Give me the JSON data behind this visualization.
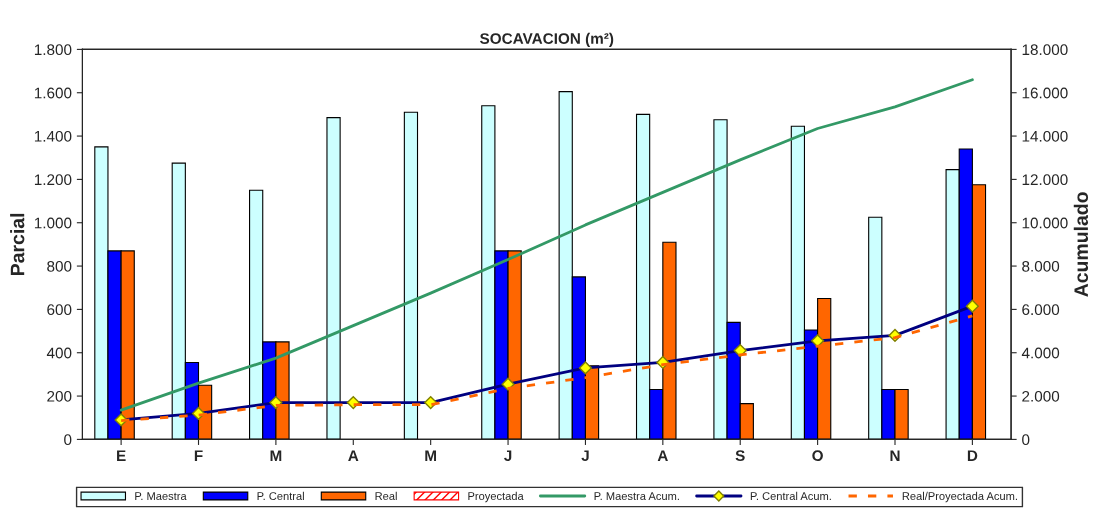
{
  "chart_data": {
    "type": "bar",
    "title": "SOCAVACION (m²)",
    "ylabel": "Parcial",
    "y2label": "Acumulado",
    "categories": [
      "E",
      "F",
      "M",
      "A",
      "M",
      "J",
      "J",
      "A",
      "S",
      "O",
      "N",
      "D"
    ],
    "series": [
      {
        "name": "P. Maestra",
        "color": "#ccffff",
        "values": [
          1350,
          1275,
          1150,
          1485,
          1510,
          1540,
          1605,
          1500,
          1475,
          1445,
          1025,
          1245
        ]
      },
      {
        "name": "P. Central",
        "color": "#0000ff",
        "values": [
          870,
          355,
          450,
          null,
          null,
          870,
          750,
          230,
          540,
          505,
          230,
          1340
        ]
      },
      {
        "name": "Real",
        "color": "#ff6600",
        "values": [
          870,
          250,
          450,
          null,
          null,
          870,
          340,
          910,
          165,
          650,
          230,
          1175
        ]
      },
      {
        "name": "Proyectada",
        "color": "#ff0000",
        "values": [
          null,
          null,
          null,
          null,
          null,
          null,
          null,
          null,
          null,
          null,
          null,
          null
        ]
      },
      {
        "name": "P. Maestra Acum.",
        "type": "line",
        "axis": "y2",
        "color": "#339966",
        "line_style": "solid",
        "marker": "none",
        "values": [
          1350,
          2600,
          3750,
          5250,
          6750,
          8300,
          9900,
          11400,
          12900,
          14350,
          15350,
          16600
        ]
      },
      {
        "name": "P. Central Acum.",
        "type": "line",
        "axis": "y2",
        "color": "#000080",
        "line_style": "solid",
        "marker": "diamond",
        "values": [
          900,
          1200,
          1700,
          1700,
          1700,
          2550,
          3300,
          3550,
          4100,
          4550,
          4800,
          6150
        ]
      },
      {
        "name": "Real/Proyectada Acum.",
        "type": "line",
        "axis": "y2",
        "color": "#ff6600",
        "line_style": "dashed",
        "marker": "none",
        "values": [
          870,
          1120,
          1570,
          1600,
          1600,
          2350,
          2850,
          3450,
          3900,
          4300,
          4700,
          5700
        ]
      }
    ],
    "ylim": [
      0,
      1800
    ],
    "yticks": [
      0,
      200,
      400,
      600,
      800,
      {
        "value": 1000,
        "label": "1.000"
      },
      {
        "value": 1200,
        "label": "1.200"
      },
      {
        "value": 1400,
        "label": "1.400"
      },
      {
        "value": 1600,
        "label": "1.600"
      },
      {
        "value": 1800,
        "label": "1.800"
      }
    ],
    "y2lim": [
      0,
      18000
    ],
    "y2ticks": [
      0,
      {
        "value": 2000,
        "label": "2.000"
      },
      {
        "value": 4000,
        "label": "4.000"
      },
      {
        "value": 6000,
        "label": "6.000"
      },
      {
        "value": 8000,
        "label": "8.000"
      },
      {
        "value": 10000,
        "label": "10.000"
      },
      {
        "value": 12000,
        "label": "12.000"
      },
      {
        "value": 14000,
        "label": "14.000"
      },
      {
        "value": 16000,
        "label": "16.000"
      },
      {
        "value": 18000,
        "label": "18.000"
      }
    ],
    "grid": false,
    "legend": "bottom"
  }
}
